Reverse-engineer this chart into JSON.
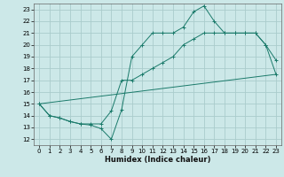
{
  "title": "",
  "xlabel": "Humidex (Indice chaleur)",
  "ylabel": "",
  "bg_color": "#cce8e8",
  "grid_color": "#aacccc",
  "line_color": "#1a7a6a",
  "xlim": [
    -0.5,
    23.5
  ],
  "ylim": [
    11.5,
    23.5
  ],
  "xticks": [
    0,
    1,
    2,
    3,
    4,
    5,
    6,
    7,
    8,
    9,
    10,
    11,
    12,
    13,
    14,
    15,
    16,
    17,
    18,
    19,
    20,
    21,
    22,
    23
  ],
  "yticks": [
    12,
    13,
    14,
    15,
    16,
    17,
    18,
    19,
    20,
    21,
    22,
    23
  ],
  "line1_x": [
    0,
    1,
    2,
    3,
    4,
    5,
    6,
    7,
    8,
    9,
    10,
    11,
    12,
    13,
    14,
    15,
    16,
    17,
    18,
    19,
    20,
    21,
    22,
    23
  ],
  "line1_y": [
    15,
    14,
    13.8,
    13.5,
    13.3,
    13.2,
    12.9,
    12,
    14.5,
    19,
    20,
    21,
    21,
    21,
    21.5,
    22.8,
    23.3,
    22,
    21,
    21,
    21,
    21,
    20,
    18.7
  ],
  "line2_x": [
    0,
    1,
    2,
    3,
    4,
    5,
    6,
    7,
    8,
    9,
    10,
    11,
    12,
    13,
    14,
    15,
    16,
    17,
    18,
    19,
    20,
    21,
    22,
    23
  ],
  "line2_y": [
    15,
    14,
    13.8,
    13.5,
    13.3,
    13.3,
    13.3,
    14.4,
    17,
    17,
    17.5,
    18,
    18.5,
    19,
    20,
    20.5,
    21,
    21,
    21,
    21,
    21,
    21,
    20,
    17.5
  ],
  "line3_x": [
    0,
    23
  ],
  "line3_y": [
    15,
    17.5
  ]
}
